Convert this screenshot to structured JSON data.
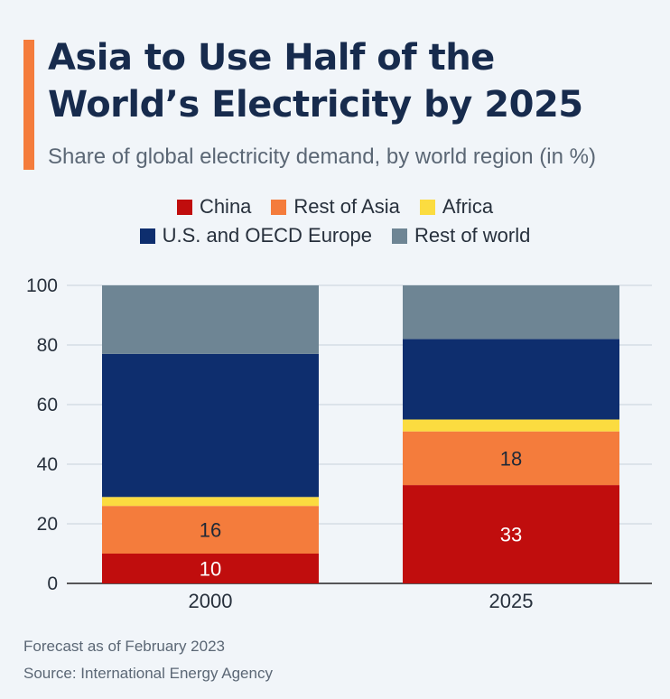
{
  "header": {
    "title": "Asia to Use Half of the World’s Electricity by 2025",
    "subtitle": "Share of global electricity demand, by world region (in %)",
    "accent_color": "#f47c3c"
  },
  "legend": {
    "rows": [
      [
        {
          "label": "China",
          "color": "#c00d0d"
        },
        {
          "label": "Rest of Asia",
          "color": "#f47c3c"
        },
        {
          "label": "Africa",
          "color": "#fbdc40"
        }
      ],
      [
        {
          "label": "U.S. and OECD Europe",
          "color": "#0e2e6e"
        },
        {
          "label": "Rest of world",
          "color": "#6e8594"
        }
      ]
    ]
  },
  "chart_data": {
    "type": "bar",
    "stacked": true,
    "categories": [
      "2000",
      "2025"
    ],
    "series": [
      {
        "name": "China",
        "color": "#c00d0d",
        "values": [
          10,
          33
        ],
        "labels": [
          "10",
          "33"
        ]
      },
      {
        "name": "Rest of Asia",
        "color": "#f47c3c",
        "values": [
          16,
          18
        ],
        "labels": [
          "16",
          "18"
        ]
      },
      {
        "name": "Africa",
        "color": "#fbdc40",
        "values": [
          3,
          4
        ],
        "labels": [
          "",
          ""
        ]
      },
      {
        "name": "U.S. and OECD Europe",
        "color": "#0e2e6e",
        "values": [
          48,
          27
        ],
        "labels": [
          "",
          ""
        ]
      },
      {
        "name": "Rest of world",
        "color": "#6e8594",
        "values": [
          23,
          18
        ],
        "labels": [
          "",
          ""
        ]
      }
    ],
    "ylim": [
      0,
      100
    ],
    "yticks": [
      "0",
      "20",
      "40",
      "60",
      "80",
      "100"
    ],
    "grid": true,
    "xlabel": "",
    "ylabel": ""
  },
  "footer": {
    "note": "Forecast as of February 2023",
    "source": "Source: International Energy Agency"
  }
}
